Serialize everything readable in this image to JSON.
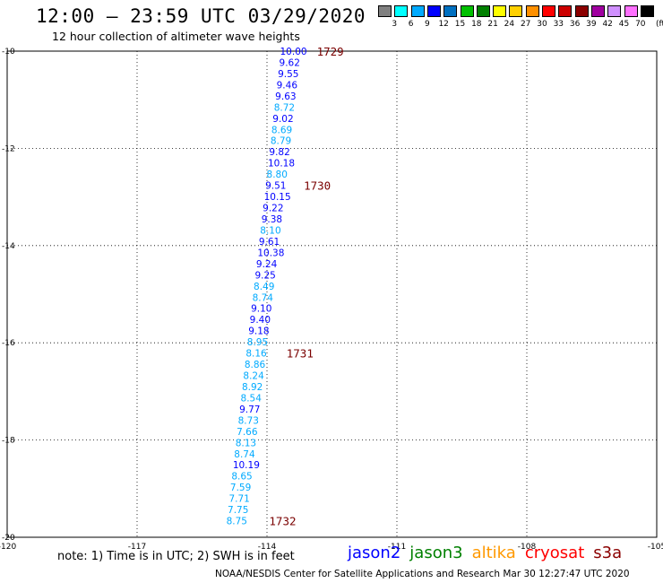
{
  "header": {
    "title": "12:00 – 23:59 UTC 03/29/2020",
    "subtitle": "12 hour collection of altimeter wave heights"
  },
  "legend": {
    "colors": [
      "#808080",
      "#00ffff",
      "#00aaff",
      "#0000ff",
      "#0070c0",
      "#00c000",
      "#008000",
      "#ffff00",
      "#ffd000",
      "#ff9000",
      "#ff0000",
      "#cc0000",
      "#8b0000",
      "#a000a0",
      "#d090ff",
      "#ff70ff",
      "#000000"
    ],
    "labels": [
      "3",
      "6",
      "9",
      "12",
      "15",
      "18",
      "21",
      "24",
      "27",
      "30",
      "33",
      "36",
      "39",
      "42",
      "45",
      "70"
    ],
    "unit": "(ft)"
  },
  "map": {
    "lon_ticks": [
      "-120",
      "-117",
      "-114",
      "-111",
      "-108",
      "-105"
    ],
    "lat_ticks": [
      "-10",
      "-12",
      "-14",
      "-16",
      "-18",
      "-20"
    ],
    "extent": {
      "lon": [
        -120,
        -105
      ],
      "lat": [
        -20,
        -10
      ]
    }
  },
  "observations": [
    {
      "lat": -10.0,
      "lon": -113.7,
      "swh": "10.00",
      "color": "#0000ff"
    },
    {
      "lat": -10.23,
      "lon": -113.72,
      "swh": "9.62",
      "color": "#0000ff"
    },
    {
      "lat": -10.46,
      "lon": -113.75,
      "swh": "9.55",
      "color": "#0000ff"
    },
    {
      "lat": -10.69,
      "lon": -113.78,
      "swh": "9.46",
      "color": "#0000ff"
    },
    {
      "lat": -10.92,
      "lon": -113.81,
      "swh": "9.63",
      "color": "#0000ff"
    },
    {
      "lat": -11.15,
      "lon": -113.84,
      "swh": "8.72",
      "color": "#00aaff"
    },
    {
      "lat": -11.38,
      "lon": -113.87,
      "swh": "9.02",
      "color": "#0000ff"
    },
    {
      "lat": -11.61,
      "lon": -113.9,
      "swh": "8.69",
      "color": "#00aaff"
    },
    {
      "lat": -11.84,
      "lon": -113.92,
      "swh": "8.79",
      "color": "#00aaff"
    },
    {
      "lat": -12.07,
      "lon": -113.95,
      "swh": "9.82",
      "color": "#0000ff"
    },
    {
      "lat": -12.3,
      "lon": -113.98,
      "swh": "10.18",
      "color": "#0000ff"
    },
    {
      "lat": -12.53,
      "lon": -114.01,
      "swh": "8.80",
      "color": "#00aaff"
    },
    {
      "lat": -12.76,
      "lon": -114.04,
      "swh": "9.51",
      "color": "#0000ff"
    },
    {
      "lat": -12.99,
      "lon": -114.07,
      "swh": "10.15",
      "color": "#0000ff"
    },
    {
      "lat": -13.22,
      "lon": -114.1,
      "swh": "9.22",
      "color": "#0000ff"
    },
    {
      "lat": -13.45,
      "lon": -114.13,
      "swh": "9.38",
      "color": "#0000ff"
    },
    {
      "lat": -13.68,
      "lon": -114.16,
      "swh": "8.10",
      "color": "#00aaff"
    },
    {
      "lat": -13.91,
      "lon": -114.19,
      "swh": "9.61",
      "color": "#0000ff"
    },
    {
      "lat": -14.14,
      "lon": -114.22,
      "swh": "10.38",
      "color": "#0000ff"
    },
    {
      "lat": -14.37,
      "lon": -114.25,
      "swh": "9.24",
      "color": "#0000ff"
    },
    {
      "lat": -14.6,
      "lon": -114.28,
      "swh": "9.25",
      "color": "#0000ff"
    },
    {
      "lat": -14.83,
      "lon": -114.31,
      "swh": "8.49",
      "color": "#00aaff"
    },
    {
      "lat": -15.06,
      "lon": -114.34,
      "swh": "8.74",
      "color": "#00aaff"
    },
    {
      "lat": -15.29,
      "lon": -114.37,
      "swh": "9.10",
      "color": "#0000ff"
    },
    {
      "lat": -15.52,
      "lon": -114.4,
      "swh": "9.40",
      "color": "#0000ff"
    },
    {
      "lat": -15.75,
      "lon": -114.43,
      "swh": "9.18",
      "color": "#0000ff"
    },
    {
      "lat": -15.98,
      "lon": -114.46,
      "swh": "8.95",
      "color": "#00aaff"
    },
    {
      "lat": -16.21,
      "lon": -114.49,
      "swh": "8.16",
      "color": "#00aaff"
    },
    {
      "lat": -16.44,
      "lon": -114.52,
      "swh": "8.86",
      "color": "#00aaff"
    },
    {
      "lat": -16.67,
      "lon": -114.55,
      "swh": "8.24",
      "color": "#00aaff"
    },
    {
      "lat": -16.9,
      "lon": -114.58,
      "swh": "8.92",
      "color": "#00aaff"
    },
    {
      "lat": -17.13,
      "lon": -114.61,
      "swh": "8.54",
      "color": "#00aaff"
    },
    {
      "lat": -17.36,
      "lon": -114.64,
      "swh": "9.77",
      "color": "#0000ff"
    },
    {
      "lat": -17.59,
      "lon": -114.67,
      "swh": "8.73",
      "color": "#00aaff"
    },
    {
      "lat": -17.82,
      "lon": -114.7,
      "swh": "7.66",
      "color": "#00aaff"
    },
    {
      "lat": -18.05,
      "lon": -114.73,
      "swh": "8.13",
      "color": "#00aaff"
    },
    {
      "lat": -18.28,
      "lon": -114.76,
      "swh": "8.74",
      "color": "#00aaff"
    },
    {
      "lat": -18.51,
      "lon": -114.79,
      "swh": "10.19",
      "color": "#0000ff"
    },
    {
      "lat": -18.74,
      "lon": -114.82,
      "swh": "8.65",
      "color": "#00aaff"
    },
    {
      "lat": -18.97,
      "lon": -114.85,
      "swh": "7.59",
      "color": "#00aaff"
    },
    {
      "lat": -19.2,
      "lon": -114.88,
      "swh": "7.71",
      "color": "#00aaff"
    },
    {
      "lat": -19.43,
      "lon": -114.91,
      "swh": "7.75",
      "color": "#00aaff"
    },
    {
      "lat": -19.66,
      "lon": -114.94,
      "swh": "8.75",
      "color": "#00aaff"
    }
  ],
  "cycle_labels": [
    {
      "text": "1729",
      "lat": -10.0,
      "lon": -112.85
    },
    {
      "text": "1730",
      "lat": -12.76,
      "lon": -113.15
    },
    {
      "text": "1731",
      "lat": -16.21,
      "lon": -113.55
    },
    {
      "text": "1732",
      "lat": -19.66,
      "lon": -113.95
    }
  ],
  "footer": {
    "note": "note: 1) Time is in UTC; 2) SWH is in feet",
    "satellites": [
      {
        "name": "jason2",
        "color": "#0000ff"
      },
      {
        "name": "jason3",
        "color": "#008000"
      },
      {
        "name": "altika",
        "color": "#ff9900"
      },
      {
        "name": "cryosat",
        "color": "#ff0000"
      },
      {
        "name": "s3a",
        "color": "#8b0000"
      }
    ],
    "credit": "NOAA/NESDIS Center for Satellite Applications and Research    Mar 30 12:27:47 UTC 2020"
  }
}
